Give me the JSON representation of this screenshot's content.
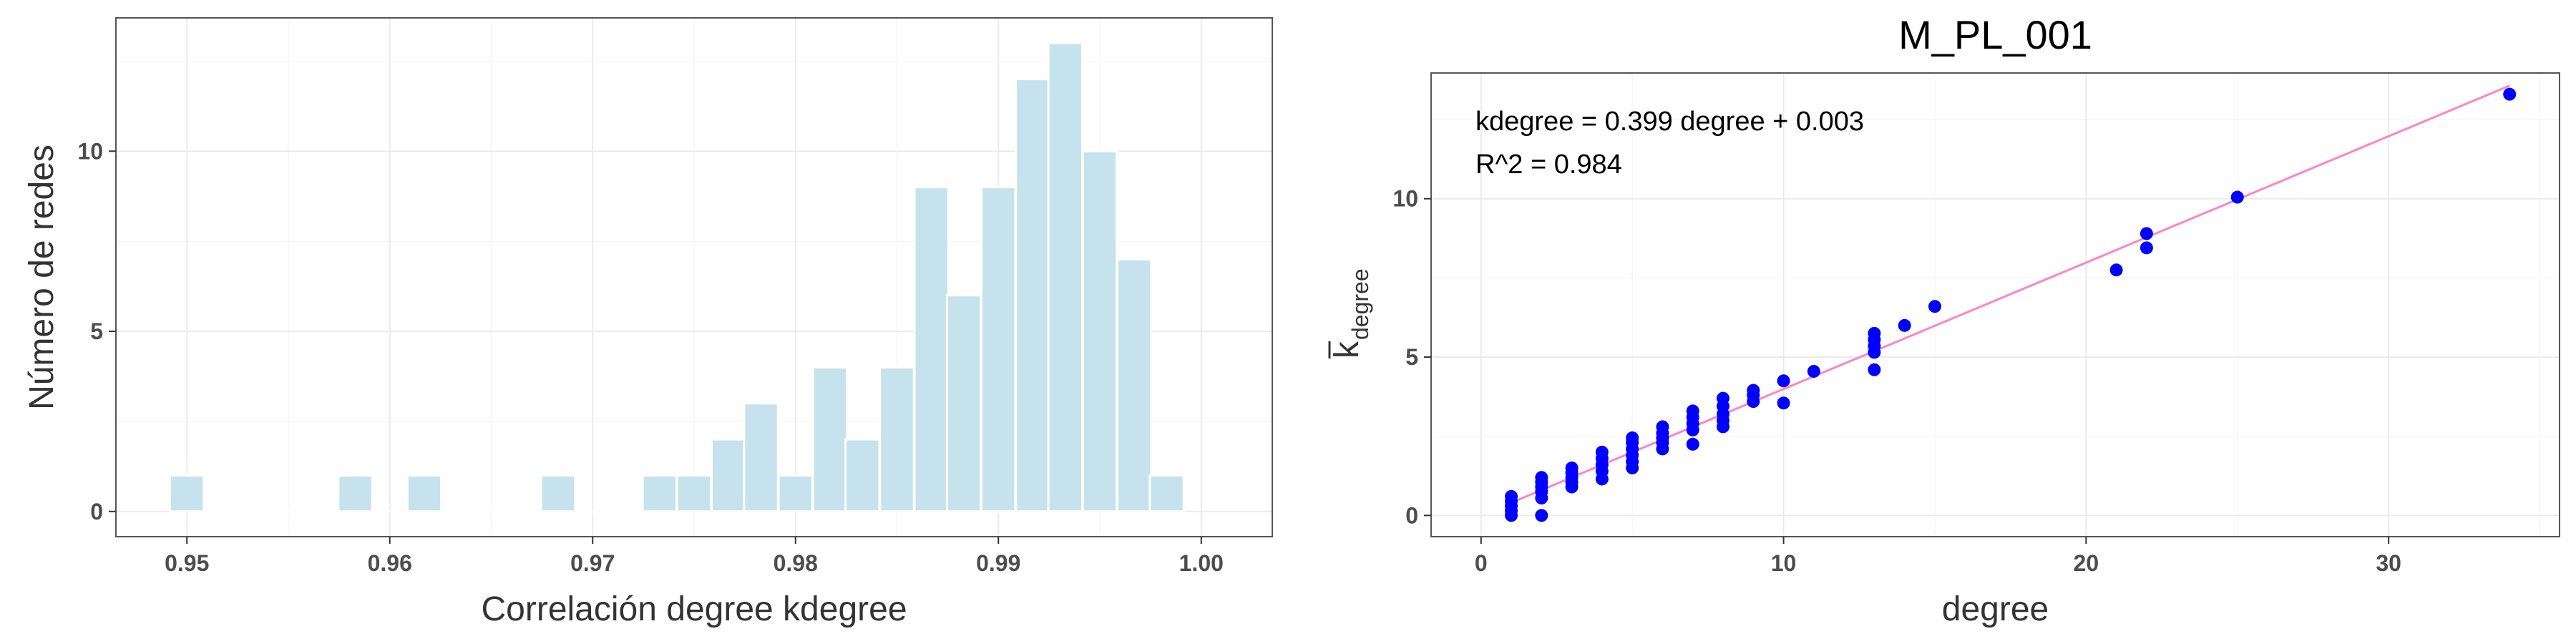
{
  "chart_data": [
    {
      "type": "bar",
      "title": "",
      "xlabel": "Correlación degree kdegree",
      "ylabel": "Número de redes",
      "xlim": [
        0.9465,
        1.0035
      ],
      "ylim": [
        -0.7,
        13.7
      ],
      "xticks": [
        0.95,
        0.96,
        0.97,
        0.98,
        0.99,
        1.0
      ],
      "xtick_labels": [
        "0.95",
        "0.96",
        "0.97",
        "0.98",
        "0.99",
        "1.00"
      ],
      "yticks": [
        0,
        5,
        10
      ],
      "ytick_labels": [
        "0",
        "5",
        "10"
      ],
      "bin_width": 0.00167,
      "bins": [
        {
          "x": 0.95,
          "count": 1
        },
        {
          "x": 0.9517,
          "count": 0
        },
        {
          "x": 0.9533,
          "count": 0
        },
        {
          "x": 0.955,
          "count": 0
        },
        {
          "x": 0.9567,
          "count": 0
        },
        {
          "x": 0.9583,
          "count": 1
        },
        {
          "x": 0.96,
          "count": 0
        },
        {
          "x": 0.9617,
          "count": 1
        },
        {
          "x": 0.9633,
          "count": 0
        },
        {
          "x": 0.965,
          "count": 0
        },
        {
          "x": 0.9667,
          "count": 0
        },
        {
          "x": 0.9683,
          "count": 1
        },
        {
          "x": 0.97,
          "count": 0
        },
        {
          "x": 0.9717,
          "count": 0
        },
        {
          "x": 0.9733,
          "count": 1
        },
        {
          "x": 0.975,
          "count": 1
        },
        {
          "x": 0.9767,
          "count": 2
        },
        {
          "x": 0.9783,
          "count": 3
        },
        {
          "x": 0.98,
          "count": 1
        },
        {
          "x": 0.9817,
          "count": 4
        },
        {
          "x": 0.9833,
          "count": 2
        },
        {
          "x": 0.985,
          "count": 4
        },
        {
          "x": 0.9867,
          "count": 9
        },
        {
          "x": 0.9883,
          "count": 6
        },
        {
          "x": 0.99,
          "count": 9
        },
        {
          "x": 0.9917,
          "count": 12
        },
        {
          "x": 0.9933,
          "count": 13
        },
        {
          "x": 0.995,
          "count": 10
        },
        {
          "x": 0.9967,
          "count": 7
        },
        {
          "x": 0.9983,
          "count": 1
        }
      ],
      "colors": {
        "fill": "#c6e3ed",
        "stroke": "#ffffff"
      },
      "grid": true,
      "legend": "none"
    },
    {
      "type": "scatter",
      "title": "M_PL_001",
      "xlabel": "degree",
      "ylabel_main": "k",
      "ylabel_sub": "degree",
      "xlim": [
        -1.65,
        35.65
      ],
      "ylim": [
        -0.67,
        13.97
      ],
      "xticks": [
        0,
        10,
        20,
        30
      ],
      "xtick_labels": [
        "0",
        "10",
        "20",
        "30"
      ],
      "yticks": [
        0,
        5,
        10
      ],
      "ytick_labels": [
        "0",
        "5",
        "10"
      ],
      "annotations": [
        "kdegree = 0.399 degree + 0.003",
        "R^2 = 0.984"
      ],
      "fit": {
        "slope": 0.399,
        "intercept": 0.003,
        "x_range": [
          1,
          34
        ]
      },
      "points": [
        {
          "x": 1,
          "y": 0.0
        },
        {
          "x": 1,
          "y": 0.15
        },
        {
          "x": 1,
          "y": 0.3
        },
        {
          "x": 1,
          "y": 0.45
        },
        {
          "x": 1,
          "y": 0.6
        },
        {
          "x": 2,
          "y": 0.0
        },
        {
          "x": 2,
          "y": 0.55
        },
        {
          "x": 2,
          "y": 0.75
        },
        {
          "x": 2,
          "y": 0.9
        },
        {
          "x": 2,
          "y": 1.05
        },
        {
          "x": 2,
          "y": 1.2
        },
        {
          "x": 3,
          "y": 0.9
        },
        {
          "x": 3,
          "y": 1.05
        },
        {
          "x": 3,
          "y": 1.2
        },
        {
          "x": 3,
          "y": 1.35
        },
        {
          "x": 3,
          "y": 1.5
        },
        {
          "x": 4,
          "y": 1.15
        },
        {
          "x": 4,
          "y": 1.4
        },
        {
          "x": 4,
          "y": 1.6
        },
        {
          "x": 4,
          "y": 1.8
        },
        {
          "x": 4,
          "y": 2.0
        },
        {
          "x": 5,
          "y": 1.5
        },
        {
          "x": 5,
          "y": 1.7
        },
        {
          "x": 5,
          "y": 1.9
        },
        {
          "x": 5,
          "y": 2.1
        },
        {
          "x": 5,
          "y": 2.3
        },
        {
          "x": 5,
          "y": 2.45
        },
        {
          "x": 6,
          "y": 2.1
        },
        {
          "x": 6,
          "y": 2.3
        },
        {
          "x": 6,
          "y": 2.45
        },
        {
          "x": 6,
          "y": 2.6
        },
        {
          "x": 6,
          "y": 2.8
        },
        {
          "x": 7,
          "y": 2.25
        },
        {
          "x": 7,
          "y": 2.7
        },
        {
          "x": 7,
          "y": 2.9
        },
        {
          "x": 7,
          "y": 3.1
        },
        {
          "x": 7,
          "y": 3.3
        },
        {
          "x": 8,
          "y": 2.8
        },
        {
          "x": 8,
          "y": 3.0
        },
        {
          "x": 8,
          "y": 3.2
        },
        {
          "x": 8,
          "y": 3.45
        },
        {
          "x": 8,
          "y": 3.7
        },
        {
          "x": 9,
          "y": 3.6
        },
        {
          "x": 9,
          "y": 3.8
        },
        {
          "x": 9,
          "y": 3.95
        },
        {
          "x": 10,
          "y": 3.55
        },
        {
          "x": 10,
          "y": 4.25
        },
        {
          "x": 11,
          "y": 4.55
        },
        {
          "x": 13,
          "y": 4.6
        },
        {
          "x": 13,
          "y": 5.15
        },
        {
          "x": 13,
          "y": 5.35
        },
        {
          "x": 13,
          "y": 5.55
        },
        {
          "x": 13,
          "y": 5.75
        },
        {
          "x": 14,
          "y": 6.0
        },
        {
          "x": 15,
          "y": 6.6
        },
        {
          "x": 21,
          "y": 7.75
        },
        {
          "x": 22,
          "y": 8.45
        },
        {
          "x": 22,
          "y": 8.9
        },
        {
          "x": 25,
          "y": 10.05
        },
        {
          "x": 34,
          "y": 13.3
        }
      ],
      "colors": {
        "point": "#0000ff",
        "line": "#ff85c0"
      },
      "grid": true,
      "legend": "none"
    }
  ]
}
